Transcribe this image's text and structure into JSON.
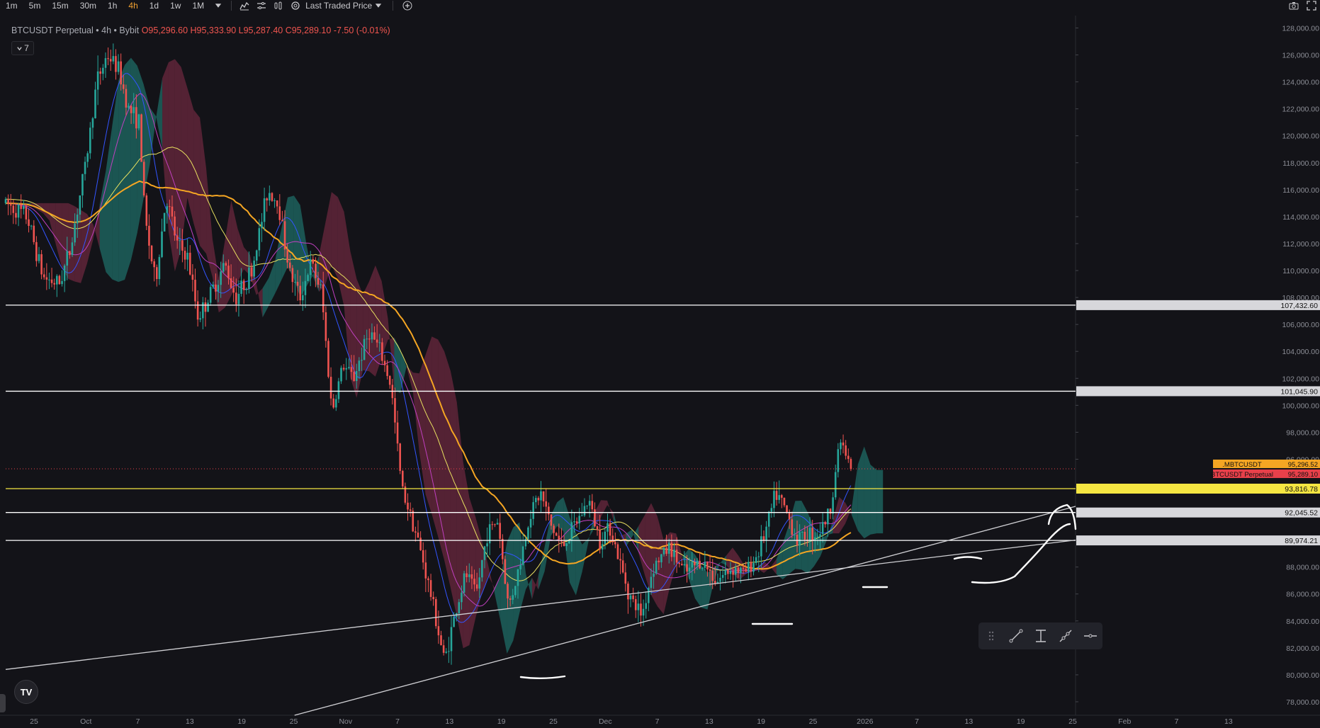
{
  "toolbar": {
    "timeframes": [
      "1m",
      "5m",
      "15m",
      "30m",
      "1h",
      "4h",
      "1d",
      "1w",
      "1M"
    ],
    "active_timeframe": "4h",
    "price_source": "Last Traded Price"
  },
  "symbol": {
    "name": "BTCUSDT Perpetual",
    "sep1": "•",
    "interval": "4h",
    "sep2": "•",
    "exchange": "Bybit",
    "open": "O95,296.60",
    "high": "H95,333.90",
    "low": "L95,287.40",
    "close": "C95,289.10",
    "change": "-7.50 (-0.01%)"
  },
  "indicators_toggle": "7",
  "logo_text": "TV",
  "colors": {
    "background": "#131318",
    "text": "#b2b5be",
    "accent": "#f0a030",
    "down": "#f0554f",
    "up": "#26a69a",
    "yellow_level": "#f5e642",
    "orange_ma": "#f5a623"
  },
  "chart_data": {
    "type": "candlestick",
    "symbol": "BTCUSDT",
    "ylim": [
      77000,
      128500
    ],
    "y_ticks": [
      "78,000.00",
      "80,000.00",
      "82,000.00",
      "84,000.00",
      "86,000.00",
      "88,000.00",
      "90,000.00",
      "92,000.00",
      "94,000.00",
      "96,000.00",
      "98,000.00",
      "100,000.00",
      "102,000.00",
      "104,000.00",
      "106,000.00",
      "108,000.00",
      "110,000.00",
      "112,000.00",
      "114,000.00",
      "116,000.00",
      "118,000.00",
      "120,000.00",
      "122,000.00",
      "124,000.00",
      "126,000.00",
      "128,000.00"
    ],
    "x_ticks": [
      "25",
      "Oct",
      "7",
      "13",
      "19",
      "25",
      "Nov",
      "7",
      "13",
      "19",
      "25",
      "Dec",
      "7",
      "13",
      "19",
      "25",
      "2026",
      "7",
      "13",
      "19",
      "25",
      "Feb",
      "7",
      "13"
    ],
    "price_path": [
      [
        0,
        115000
      ],
      [
        0.02,
        114000
      ],
      [
        0.035,
        109500
      ],
      [
        0.05,
        109000
      ],
      [
        0.06,
        111500
      ],
      [
        0.075,
        118000
      ],
      [
        0.085,
        124000
      ],
      [
        0.095,
        126000
      ],
      [
        0.105,
        125000
      ],
      [
        0.115,
        122000
      ],
      [
        0.125,
        121000
      ],
      [
        0.13,
        114000
      ],
      [
        0.14,
        109000
      ],
      [
        0.15,
        115500
      ],
      [
        0.16,
        112000
      ],
      [
        0.17,
        111000
      ],
      [
        0.18,
        106500
      ],
      [
        0.19,
        108000
      ],
      [
        0.205,
        110500
      ],
      [
        0.215,
        108000
      ],
      [
        0.23,
        110000
      ],
      [
        0.245,
        116000
      ],
      [
        0.255,
        115000
      ],
      [
        0.265,
        110000
      ],
      [
        0.275,
        108000
      ],
      [
        0.285,
        110500
      ],
      [
        0.295,
        108500
      ],
      [
        0.305,
        99500
      ],
      [
        0.315,
        103000
      ],
      [
        0.325,
        102000
      ],
      [
        0.34,
        105500
      ],
      [
        0.35,
        104000
      ],
      [
        0.36,
        101500
      ],
      [
        0.37,
        94000
      ],
      [
        0.38,
        91500
      ],
      [
        0.39,
        88500
      ],
      [
        0.4,
        85000
      ],
      [
        0.41,
        81000
      ],
      [
        0.42,
        84500
      ],
      [
        0.43,
        87500
      ],
      [
        0.44,
        86000
      ],
      [
        0.45,
        90500
      ],
      [
        0.46,
        91500
      ],
      [
        0.47,
        85000
      ],
      [
        0.48,
        88000
      ],
      [
        0.49,
        92000
      ],
      [
        0.5,
        93500
      ],
      [
        0.51,
        91000
      ],
      [
        0.52,
        89500
      ],
      [
        0.535,
        91500
      ],
      [
        0.545,
        93000
      ],
      [
        0.555,
        90000
      ],
      [
        0.565,
        91000
      ],
      [
        0.575,
        88000
      ],
      [
        0.585,
        85500
      ],
      [
        0.595,
        84500
      ],
      [
        0.605,
        88000
      ],
      [
        0.62,
        89500
      ],
      [
        0.635,
        87500
      ],
      [
        0.65,
        88500
      ],
      [
        0.665,
        87000
      ],
      [
        0.68,
        88000
      ],
      [
        0.69,
        87500
      ],
      [
        0.7,
        88500
      ],
      [
        0.71,
        90500
      ],
      [
        0.72,
        93500
      ],
      [
        0.73,
        92000
      ],
      [
        0.74,
        90000
      ],
      [
        0.75,
        90500
      ],
      [
        0.76,
        90500
      ],
      [
        0.77,
        92000
      ],
      [
        0.78,
        97500
      ],
      [
        0.79,
        95200
      ]
    ],
    "horizontal_levels": [
      {
        "price": 107432.6,
        "label": "107,432.60",
        "color": "#ffffff"
      },
      {
        "price": 101045.9,
        "label": "101,045.90",
        "color": "#ffffff"
      },
      {
        "price": 93816.78,
        "label": "93,816.78",
        "color": "#f5e642"
      },
      {
        "price": 92045.52,
        "label": "92,045.52",
        "color": "#ffffff"
      },
      {
        "price": 89974.21,
        "label": "89,974.21",
        "color": "#ffffff"
      }
    ],
    "price_labels": [
      {
        "text": ".MBTCUSDT",
        "value": "95,296.52",
        "price": 95296.52,
        "color": "#f5a623"
      },
      {
        "text": "BTCUSDT Perpetual",
        "value": "95,289.10",
        "price": 95289.1,
        "color": "#e8404a"
      }
    ],
    "trendlines": [
      {
        "from": [
          0,
          80400
        ],
        "to": [
          1,
          90000
        ]
      },
      {
        "from": [
          0.27,
          77000
        ],
        "to": [
          1,
          92500
        ]
      }
    ],
    "grid": false,
    "legend": "none"
  }
}
